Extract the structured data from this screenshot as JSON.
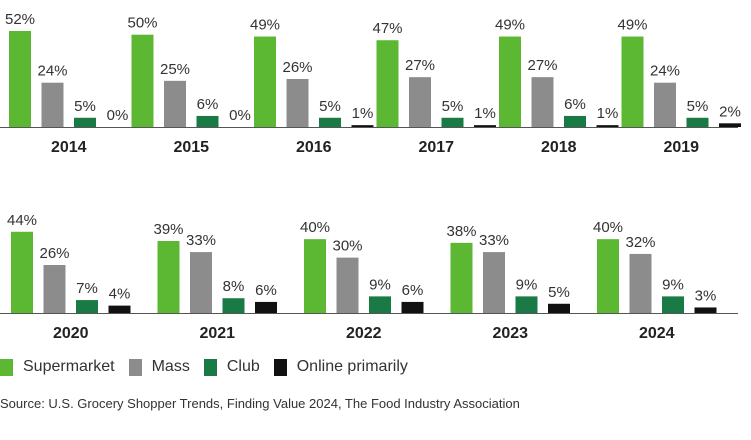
{
  "chart_data": {
    "type": "bar",
    "title": "",
    "xlabel": "",
    "ylabel": "",
    "ylim": [
      0,
      55
    ],
    "categories": [
      "2014",
      "2015",
      "2016",
      "2017",
      "2018",
      "2019",
      "2020",
      "2021",
      "2022",
      "2023",
      "2024"
    ],
    "series": [
      {
        "name": "Supermarket",
        "color": "#5cb832",
        "values": [
          52,
          50,
          49,
          47,
          49,
          49,
          44,
          39,
          40,
          38,
          40
        ]
      },
      {
        "name": "Mass",
        "color": "#8c8c8c",
        "values": [
          24,
          25,
          26,
          27,
          27,
          24,
          26,
          33,
          30,
          33,
          32
        ]
      },
      {
        "name": "Club",
        "color": "#1a7a45",
        "values": [
          5,
          6,
          5,
          5,
          6,
          5,
          7,
          8,
          9,
          9,
          9
        ]
      },
      {
        "name": "Online primarily",
        "color": "#111111",
        "values": [
          0,
          0,
          1,
          1,
          1,
          2,
          4,
          6,
          6,
          5,
          3
        ]
      }
    ],
    "value_suffix": "%"
  },
  "legend": {
    "items": [
      "Supermarket",
      "Mass",
      "Club",
      "Online primarily"
    ]
  },
  "source": "Source: U.S. Grocery Shopper Trends, Finding Value 2024, The Food Industry Association"
}
